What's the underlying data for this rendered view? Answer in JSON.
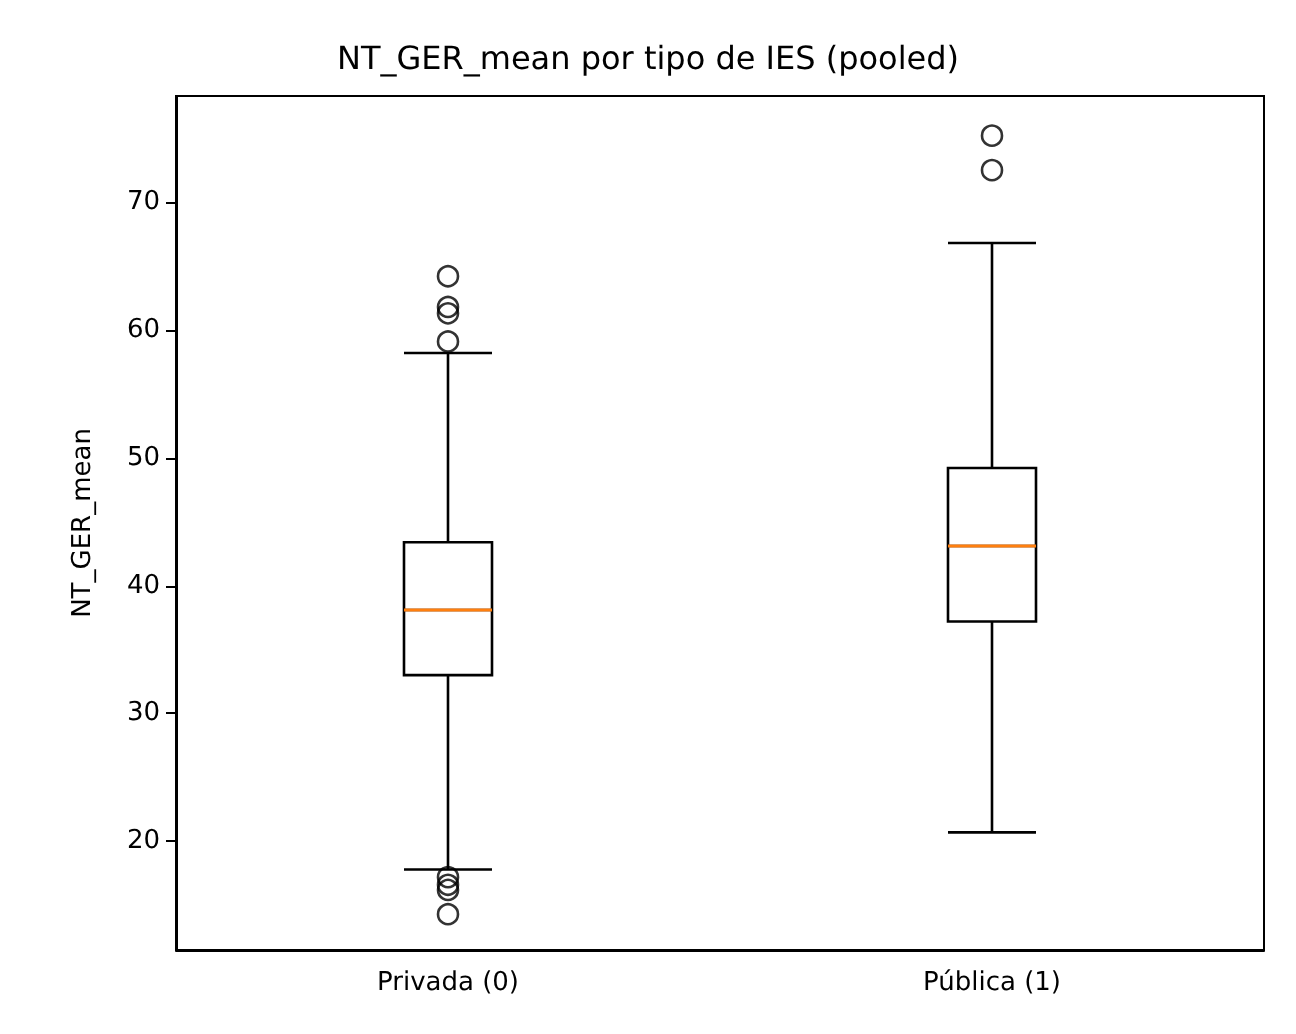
{
  "chart_data": {
    "type": "box",
    "title": "NT_GER_mean por tipo de IES (pooled)",
    "ylabel": "NT_GER_mean",
    "categories": [
      "Privada (0)",
      "Pública (1)"
    ],
    "ylim": [
      11.5,
      78.3
    ],
    "yticks": [
      20,
      30,
      40,
      50,
      60,
      70
    ],
    "grid": false,
    "boxes": [
      {
        "low": 17.8,
        "q1": 33.0,
        "median": 38.1,
        "q3": 43.4,
        "high": 58.2,
        "outliers": [
          64.2,
          61.8,
          61.3,
          59.1,
          17.2,
          16.6,
          16.2,
          14.3
        ]
      },
      {
        "low": 20.7,
        "q1": 37.2,
        "median": 43.1,
        "q3": 49.2,
        "high": 66.8,
        "outliers": [
          75.2,
          72.5
        ]
      }
    ]
  }
}
